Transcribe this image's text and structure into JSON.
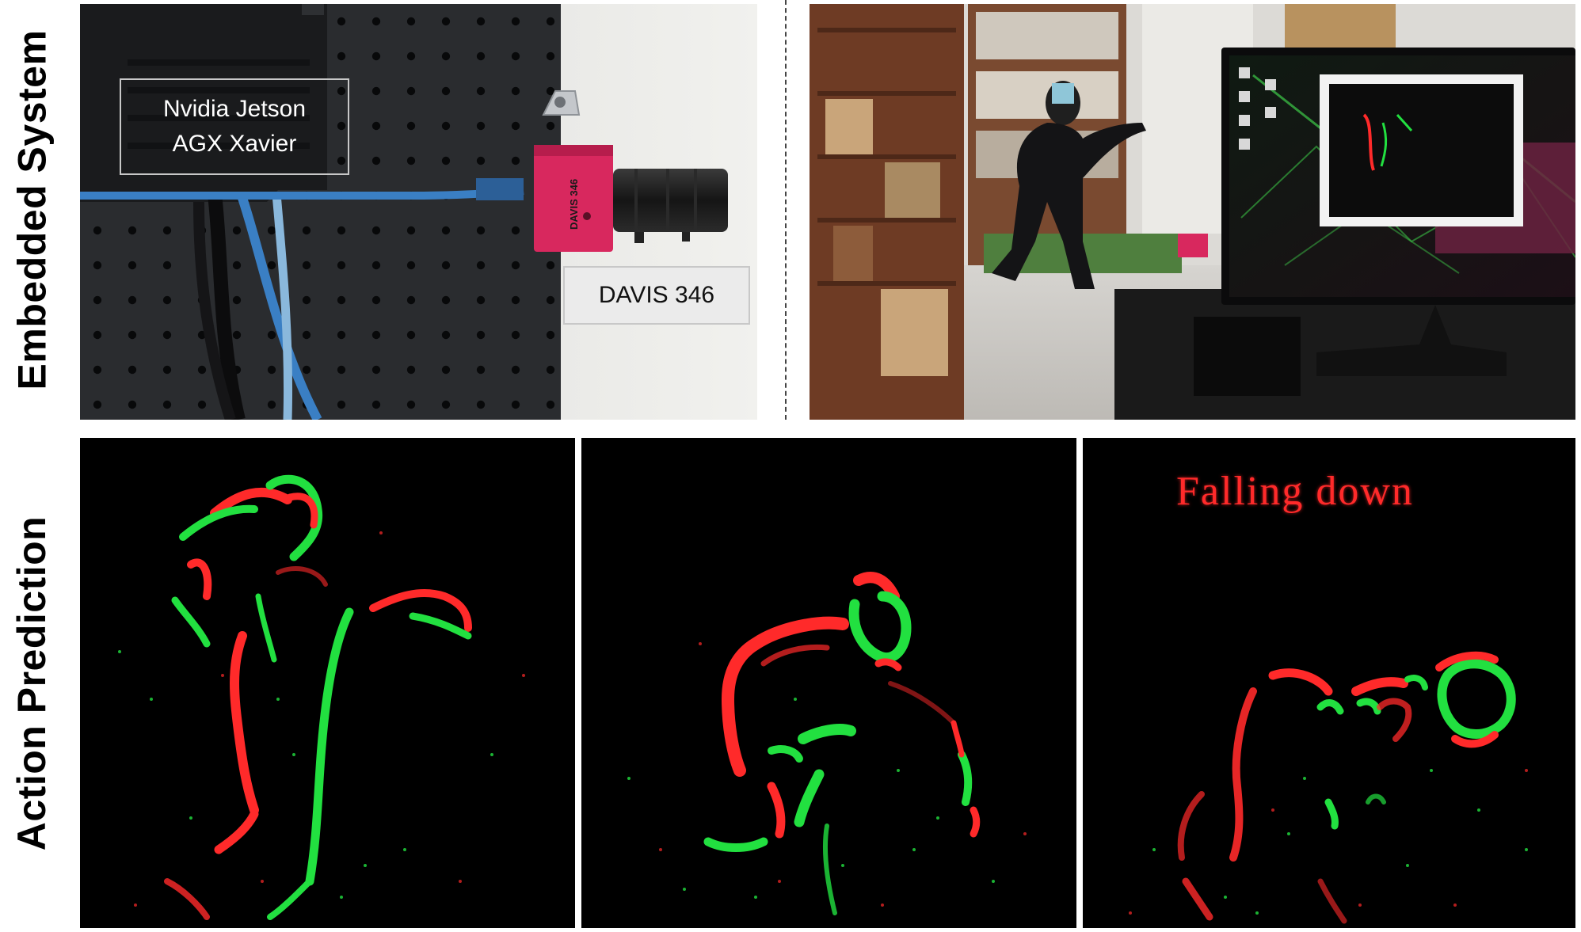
{
  "row_labels": {
    "top": "Embedded System",
    "bottom": "Action Prediction"
  },
  "hardware_photo": {
    "jetson_label_line1": "Nvidia Jetson",
    "jetson_label_line2": "AGX Xavier",
    "camera_label": "DAVIS 346",
    "camera_body_text": "DAVIS 346"
  },
  "demo_photo": {},
  "event_frames": [
    {},
    {},
    {
      "prediction_label": "Falling down"
    }
  ],
  "colors": {
    "positive_event": "#22e040",
    "negative_event": "#ff2a2a",
    "frame_background": "#000000",
    "pegboard": "#27292c",
    "camera_body": "#d8285e",
    "usb_cable": "#3a7fc4"
  }
}
